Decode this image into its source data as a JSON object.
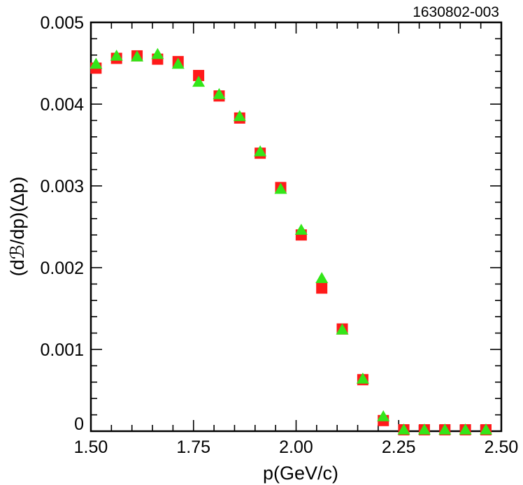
{
  "figure_tag": "1630802-003",
  "chart_data": {
    "type": "scatter",
    "xlabel": "p(GeV/c)",
    "ylabel": "(dℬ/dp)(Δp)",
    "xlim": [
      1.5,
      2.5
    ],
    "ylim": [
      0,
      0.005
    ],
    "x_ticks": [
      "1.50",
      "1.75",
      "2.00",
      "2.25",
      "2.50"
    ],
    "x_tick_values": [
      1.5,
      1.75,
      2.0,
      2.25,
      2.5
    ],
    "y_ticks": [
      "0",
      "0.001",
      "0.002",
      "0.003",
      "0.004",
      "0.005"
    ],
    "y_tick_values": [
      0,
      0.001,
      0.002,
      0.003,
      0.004,
      0.005
    ],
    "grid": false,
    "legend": "none",
    "series": [
      {
        "marker": "square",
        "color": "#ff1a1a",
        "points": [
          [
            1.5125,
            0.00444
          ],
          [
            1.5625,
            0.00456
          ],
          [
            1.6125,
            0.00459
          ],
          [
            1.6625,
            0.00455
          ],
          [
            1.7125,
            0.00452
          ],
          [
            1.7625,
            0.00435
          ],
          [
            1.8125,
            0.0041
          ],
          [
            1.8625,
            0.00383
          ],
          [
            1.9125,
            0.0034
          ],
          [
            1.9625,
            0.00298
          ],
          [
            2.0125,
            0.0024
          ],
          [
            2.0625,
            0.00175
          ],
          [
            2.1125,
            0.00125
          ],
          [
            2.1625,
            0.00063
          ],
          [
            2.2125,
            0.00013
          ],
          [
            2.2625,
            0.0
          ],
          [
            2.3125,
            0.0
          ],
          [
            2.3625,
            0.0
          ],
          [
            2.4125,
            0.0
          ],
          [
            2.4625,
            0.0
          ]
        ]
      },
      {
        "marker": "triangle",
        "color": "#33e619",
        "points": [
          [
            1.5125,
            0.00449
          ],
          [
            1.5625,
            0.00459
          ],
          [
            1.6125,
            0.00458
          ],
          [
            1.6625,
            0.00461
          ],
          [
            1.7125,
            0.00449
          ],
          [
            1.7625,
            0.00427
          ],
          [
            1.8125,
            0.00412
          ],
          [
            1.8625,
            0.00385
          ],
          [
            1.9125,
            0.00342
          ],
          [
            1.9625,
            0.00296
          ],
          [
            2.0125,
            0.00246
          ],
          [
            2.0625,
            0.00187
          ],
          [
            2.1125,
            0.00124
          ],
          [
            2.1625,
            0.00064
          ],
          [
            2.2125,
            0.00018
          ],
          [
            2.2625,
            0.0
          ],
          [
            2.3125,
            0.0
          ],
          [
            2.3625,
            0.0
          ],
          [
            2.4125,
            0.0
          ],
          [
            2.4625,
            0.0
          ]
        ]
      }
    ]
  }
}
